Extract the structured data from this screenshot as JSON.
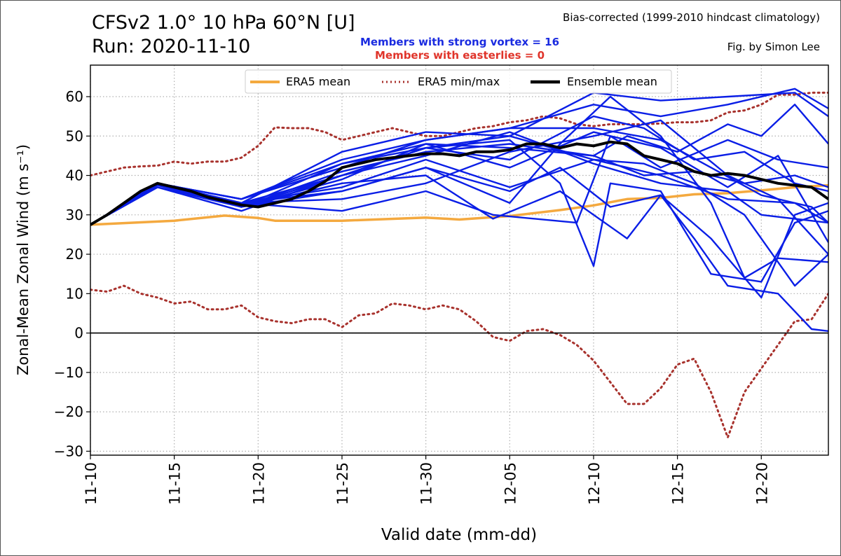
{
  "header": {
    "title_line1": "CFSv2 1.0° 10 hPa 60°N [U]",
    "title_line2": "Run: 2020-11-10",
    "bias_note": "Bias-corrected (1999-2010 hindcast climatology)",
    "byline": "Fig. by Simon Lee",
    "strong_vortex_text": "Members with strong vortex = 16",
    "easterlies_text": "Members with easterlies = 0"
  },
  "colors": {
    "era5_mean": "#f4a93f",
    "era5_minmax": "#a8322d",
    "members": "#0a1ee6",
    "ensemble_mean": "#000000",
    "strong_text": "#1a2be0",
    "easterly_text": "#e0352b"
  },
  "chart_data": {
    "type": "line",
    "title": "CFSv2 1.0° 10 hPa 60°N [U]",
    "xlabel": "Valid date (mm-dd)",
    "ylabel": "Zonal-Mean Zonal Wind (m s⁻¹)",
    "x_ticks": [
      "11-10",
      "11-15",
      "11-20",
      "11-25",
      "11-30",
      "12-05",
      "12-10",
      "12-15",
      "12-20"
    ],
    "y_ticks": [
      -30,
      -20,
      -10,
      0,
      10,
      20,
      30,
      40,
      50,
      60
    ],
    "xlim": [
      0,
      44
    ],
    "ylim": [
      -31,
      68
    ],
    "x_unit": "days from 11-10",
    "grid": true,
    "legend": {
      "placement": "top-center",
      "entries": [
        "ERA5 mean",
        "ERA5 min/max",
        "Ensemble mean"
      ]
    },
    "era5_mean": [
      [
        0,
        27.5
      ],
      [
        5,
        28.5
      ],
      [
        8,
        29.8
      ],
      [
        10,
        29.2
      ],
      [
        11,
        28.5
      ],
      [
        15,
        28.5
      ],
      [
        20,
        29.3
      ],
      [
        22,
        28.8
      ],
      [
        25,
        29.7
      ],
      [
        28,
        31.2
      ],
      [
        30,
        32.4
      ],
      [
        32,
        34
      ],
      [
        34,
        34.3
      ],
      [
        36,
        35.2
      ],
      [
        38,
        35.5
      ],
      [
        40,
        36.2
      ],
      [
        42,
        37
      ],
      [
        44,
        37.5
      ]
    ],
    "era5_max": [
      [
        0,
        40
      ],
      [
        1,
        41
      ],
      [
        2,
        42
      ],
      [
        3,
        42.3
      ],
      [
        4,
        42.5
      ],
      [
        5,
        43.5
      ],
      [
        6,
        43
      ],
      [
        7,
        43.5
      ],
      [
        8,
        43.5
      ],
      [
        9,
        44.5
      ],
      [
        10,
        47.5
      ],
      [
        11,
        52.2
      ],
      [
        12,
        52
      ],
      [
        13,
        52
      ],
      [
        14,
        51
      ],
      [
        15,
        49
      ],
      [
        16,
        50
      ],
      [
        17,
        51
      ],
      [
        18,
        52
      ],
      [
        19,
        51
      ],
      [
        20,
        50
      ],
      [
        21,
        50
      ],
      [
        22,
        51
      ],
      [
        23,
        52
      ],
      [
        24,
        52.5
      ],
      [
        25,
        53.5
      ],
      [
        26,
        54
      ],
      [
        27,
        55
      ],
      [
        28,
        54.5
      ],
      [
        29,
        53
      ],
      [
        30,
        52.5
      ],
      [
        31,
        53
      ],
      [
        32,
        53
      ],
      [
        33,
        53
      ],
      [
        34,
        53.2
      ],
      [
        35,
        53.5
      ],
      [
        36,
        53.5
      ],
      [
        37,
        54
      ],
      [
        38,
        56
      ],
      [
        39,
        56.5
      ],
      [
        40,
        58
      ],
      [
        41,
        60.5
      ],
      [
        42,
        60.5
      ],
      [
        43,
        61
      ],
      [
        44,
        61
      ]
    ],
    "era5_min": [
      [
        0,
        11
      ],
      [
        1,
        10.5
      ],
      [
        2,
        12
      ],
      [
        3,
        10
      ],
      [
        4,
        9
      ],
      [
        5,
        7.5
      ],
      [
        6,
        8
      ],
      [
        7,
        6
      ],
      [
        8,
        6
      ],
      [
        9,
        7
      ],
      [
        10,
        4
      ],
      [
        11,
        3
      ],
      [
        12,
        2.5
      ],
      [
        13,
        3.5
      ],
      [
        14,
        3.5
      ],
      [
        15,
        1.5
      ],
      [
        16,
        4.5
      ],
      [
        17,
        5
      ],
      [
        18,
        7.5
      ],
      [
        19,
        7
      ],
      [
        20,
        6
      ],
      [
        21,
        7
      ],
      [
        22,
        6
      ],
      [
        23,
        3
      ],
      [
        24,
        -1
      ],
      [
        25,
        -2
      ],
      [
        26,
        0.5
      ],
      [
        27,
        1
      ],
      [
        28,
        -0.5
      ],
      [
        29,
        -3
      ],
      [
        30,
        -7
      ],
      [
        31,
        -12.5
      ],
      [
        32,
        -18
      ],
      [
        33,
        -18
      ],
      [
        34,
        -14
      ],
      [
        35,
        -8
      ],
      [
        36,
        -6.5
      ],
      [
        37,
        -15
      ],
      [
        38,
        -26.5
      ],
      [
        39,
        -15
      ],
      [
        40,
        -9
      ],
      [
        41,
        -3
      ],
      [
        42,
        3
      ],
      [
        43,
        3.5
      ],
      [
        44,
        10
      ]
    ],
    "ensemble_mean": [
      [
        0,
        27.5
      ],
      [
        1,
        30
      ],
      [
        2,
        33
      ],
      [
        3,
        36
      ],
      [
        4,
        38
      ],
      [
        5,
        37
      ],
      [
        6,
        36
      ],
      [
        7,
        34.5
      ],
      [
        8,
        33.5
      ],
      [
        9,
        32.5
      ],
      [
        10,
        32
      ],
      [
        11,
        33
      ],
      [
        12,
        34
      ],
      [
        13,
        36
      ],
      [
        14,
        38.5
      ],
      [
        15,
        42
      ],
      [
        16,
        43
      ],
      [
        17,
        44
      ],
      [
        18,
        44.5
      ],
      [
        19,
        45
      ],
      [
        20,
        45.5
      ],
      [
        21,
        45.5
      ],
      [
        22,
        45
      ],
      [
        23,
        46
      ],
      [
        24,
        46
      ],
      [
        25,
        46.5
      ],
      [
        26,
        48
      ],
      [
        27,
        48
      ],
      [
        28,
        47
      ],
      [
        29,
        48
      ],
      [
        30,
        47.5
      ],
      [
        31,
        48.5
      ],
      [
        32,
        48
      ],
      [
        33,
        45
      ],
      [
        34,
        44
      ],
      [
        35,
        43
      ],
      [
        36,
        41
      ],
      [
        37,
        40
      ],
      [
        38,
        40.5
      ],
      [
        39,
        40
      ],
      [
        40,
        39
      ],
      [
        41,
        38
      ],
      [
        42,
        37.5
      ],
      [
        43,
        37
      ],
      [
        44,
        34
      ]
    ],
    "members": [
      {
        "values": [
          [
            0,
            27.5
          ],
          [
            4,
            38
          ],
          [
            9,
            34
          ],
          [
            15,
            44
          ],
          [
            20,
            49
          ],
          [
            25,
            52
          ],
          [
            30,
            58
          ],
          [
            34,
            55
          ],
          [
            38,
            58
          ],
          [
            42,
            62
          ],
          [
            44,
            57
          ]
        ]
      },
      {
        "values": [
          [
            0,
            27.5
          ],
          [
            4,
            38
          ],
          [
            9,
            33
          ],
          [
            15,
            46
          ],
          [
            20,
            51
          ],
          [
            25,
            50
          ],
          [
            30,
            61
          ],
          [
            34,
            59
          ],
          [
            38,
            60
          ],
          [
            42,
            61
          ],
          [
            44,
            55
          ]
        ]
      },
      {
        "values": [
          [
            0,
            27.5
          ],
          [
            4,
            37.5
          ],
          [
            9,
            32
          ],
          [
            15,
            43
          ],
          [
            20,
            48
          ],
          [
            25,
            47
          ],
          [
            30,
            45
          ],
          [
            32,
            50
          ],
          [
            35,
            46
          ],
          [
            38,
            53
          ],
          [
            40,
            50
          ],
          [
            42,
            58
          ],
          [
            44,
            48
          ]
        ]
      },
      {
        "values": [
          [
            0,
            27.5
          ],
          [
            4,
            38
          ],
          [
            9,
            32
          ],
          [
            15,
            40
          ],
          [
            20,
            47
          ],
          [
            25,
            50
          ],
          [
            30,
            44
          ],
          [
            34,
            40
          ],
          [
            38,
            34
          ],
          [
            42,
            33
          ],
          [
            44,
            28
          ]
        ]
      },
      {
        "values": [
          [
            0,
            27.5
          ],
          [
            4,
            37
          ],
          [
            9,
            31
          ],
          [
            15,
            40
          ],
          [
            20,
            45
          ],
          [
            25,
            51
          ],
          [
            30,
            43
          ],
          [
            34,
            38
          ],
          [
            38,
            36
          ],
          [
            40,
            30
          ],
          [
            44,
            28
          ]
        ]
      },
      {
        "values": [
          [
            0,
            27.5
          ],
          [
            4,
            38
          ],
          [
            9,
            34
          ],
          [
            15,
            43
          ],
          [
            20,
            47
          ],
          [
            25,
            49
          ],
          [
            28,
            38
          ],
          [
            30,
            17
          ],
          [
            31,
            38
          ],
          [
            34,
            36
          ],
          [
            37,
            15
          ],
          [
            40,
            13
          ],
          [
            42,
            28
          ],
          [
            44,
            31
          ]
        ]
      },
      {
        "values": [
          [
            0,
            27.5
          ],
          [
            4,
            38
          ],
          [
            9,
            33
          ],
          [
            15,
            36
          ],
          [
            20,
            42
          ],
          [
            25,
            36
          ],
          [
            28,
            42
          ],
          [
            31,
            32
          ],
          [
            34,
            35
          ],
          [
            37,
            24
          ],
          [
            40,
            9
          ],
          [
            42,
            30
          ],
          [
            44,
            33
          ]
        ]
      },
      {
        "values": [
          [
            0,
            27.5
          ],
          [
            4,
            37
          ],
          [
            9,
            32
          ],
          [
            15,
            38
          ],
          [
            20,
            40
          ],
          [
            24,
            29
          ],
          [
            28,
            36
          ],
          [
            32,
            24
          ],
          [
            34,
            35
          ],
          [
            36,
            24
          ],
          [
            38,
            12
          ],
          [
            41,
            10
          ],
          [
            43,
            1
          ],
          [
            44,
            0.5
          ]
        ]
      },
      {
        "values": [
          [
            0,
            27.5
          ],
          [
            4,
            38
          ],
          [
            9,
            32
          ],
          [
            15,
            36
          ],
          [
            20,
            42
          ],
          [
            25,
            33
          ],
          [
            28,
            48
          ],
          [
            31,
            60
          ],
          [
            34,
            50
          ],
          [
            37,
            33
          ],
          [
            39,
            14
          ],
          [
            41,
            19
          ],
          [
            44,
            18
          ]
        ]
      },
      {
        "values": [
          [
            0,
            27.5
          ],
          [
            4,
            38
          ],
          [
            9,
            33
          ],
          [
            15,
            34
          ],
          [
            20,
            38
          ],
          [
            25,
            46
          ],
          [
            30,
            50
          ],
          [
            34,
            54
          ],
          [
            38,
            40
          ],
          [
            41,
            34
          ],
          [
            44,
            20
          ]
        ]
      },
      {
        "values": [
          [
            0,
            27.5
          ],
          [
            4,
            38
          ],
          [
            9,
            33
          ],
          [
            15,
            37
          ],
          [
            20,
            44
          ],
          [
            25,
            37
          ],
          [
            30,
            44
          ],
          [
            33,
            43
          ],
          [
            36,
            38
          ],
          [
            39,
            30
          ],
          [
            42,
            12
          ],
          [
            44,
            20
          ]
        ]
      },
      {
        "values": [
          [
            0,
            27.5
          ],
          [
            4,
            38
          ],
          [
            9,
            33
          ],
          [
            15,
            31
          ],
          [
            20,
            36
          ],
          [
            24,
            30
          ],
          [
            29,
            28
          ],
          [
            31,
            50
          ],
          [
            34,
            42
          ],
          [
            38,
            49
          ],
          [
            41,
            44
          ],
          [
            44,
            42
          ]
        ]
      },
      {
        "values": [
          [
            0,
            27.5
          ],
          [
            4,
            38
          ],
          [
            9,
            32
          ],
          [
            15,
            39
          ],
          [
            20,
            48
          ],
          [
            25,
            42
          ],
          [
            30,
            51
          ],
          [
            34,
            47
          ],
          [
            38,
            37
          ],
          [
            41,
            45
          ],
          [
            44,
            23
          ]
        ]
      },
      {
        "values": [
          [
            0,
            27.5
          ],
          [
            4,
            38
          ],
          [
            9,
            34
          ],
          [
            15,
            42
          ],
          [
            20,
            49
          ],
          [
            25,
            52
          ],
          [
            30,
            52
          ],
          [
            34,
            49
          ],
          [
            37,
            42
          ],
          [
            40,
            35
          ],
          [
            43,
            32
          ],
          [
            44,
            28
          ]
        ]
      },
      {
        "values": [
          [
            0,
            27.5
          ],
          [
            4,
            38
          ],
          [
            9,
            33
          ],
          [
            15,
            40
          ],
          [
            20,
            47
          ],
          [
            25,
            44
          ],
          [
            30,
            55
          ],
          [
            33,
            52
          ],
          [
            36,
            44
          ],
          [
            39,
            46
          ],
          [
            42,
            38
          ],
          [
            44,
            36
          ]
        ]
      },
      {
        "values": [
          [
            0,
            27.5
          ],
          [
            4,
            38
          ],
          [
            9,
            32
          ],
          [
            15,
            41
          ],
          [
            20,
            46
          ],
          [
            25,
            48
          ],
          [
            30,
            45
          ],
          [
            33,
            40
          ],
          [
            36,
            41
          ],
          [
            39,
            38
          ],
          [
            42,
            40
          ],
          [
            44,
            37
          ]
        ]
      }
    ]
  }
}
